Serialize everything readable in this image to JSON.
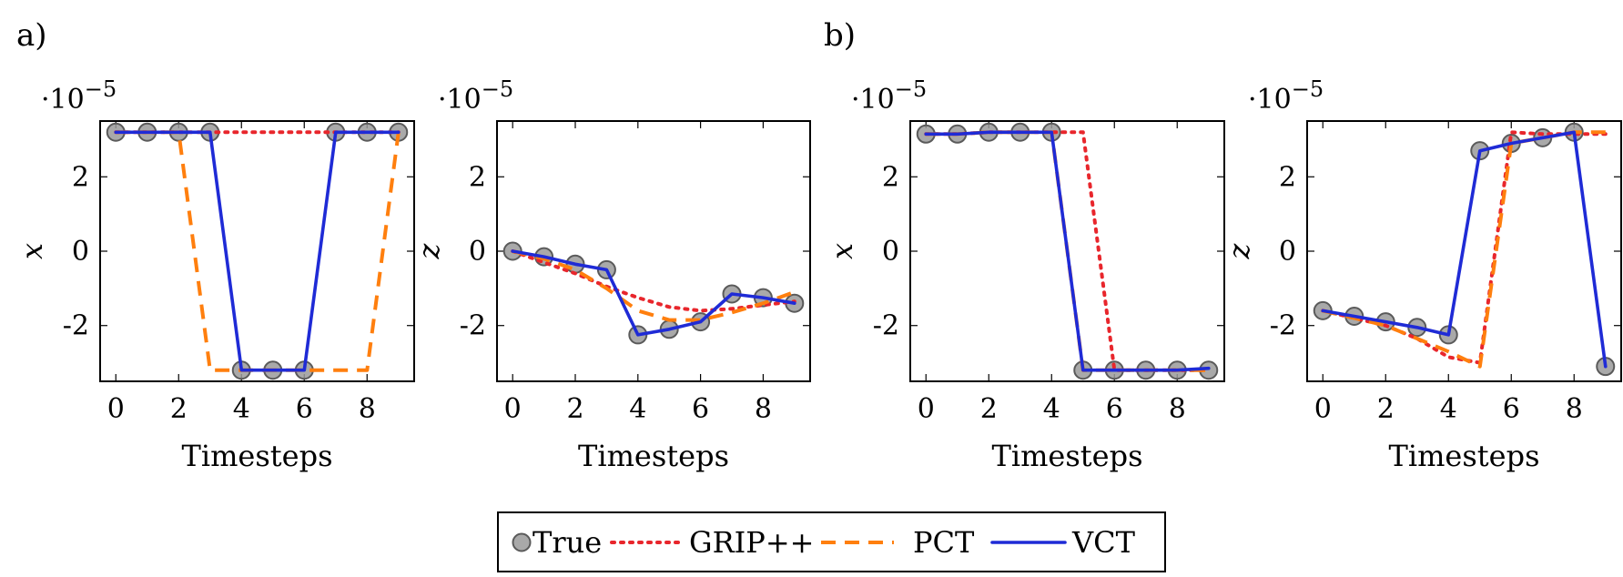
{
  "panels": [
    {
      "label": "a)"
    },
    {
      "label": "b)"
    }
  ],
  "legend": [
    {
      "key": "true",
      "label": "True",
      "color": "#8c8c8c",
      "style": "marker"
    },
    {
      "key": "grip",
      "label": "GRIP++",
      "color": "#e8262c",
      "style": "dotted"
    },
    {
      "key": "pct",
      "label": "PCT",
      "color": "#ff7f0e",
      "style": "dashed"
    },
    {
      "key": "vct",
      "label": "VCT",
      "color": "#1f2bd6",
      "style": "solid"
    }
  ],
  "chart_data": [
    {
      "type": "line",
      "panel": "a)",
      "xlabel": "Timesteps",
      "ylabel": "x",
      "y_multiplier": "·10",
      "y_multiplier_exp": "−5",
      "x": [
        0,
        1,
        2,
        3,
        4,
        5,
        6,
        7,
        8,
        9
      ],
      "xticks": [
        "0",
        "2",
        "4",
        "6",
        "8"
      ],
      "yticks": [
        "2",
        "0",
        "-2"
      ],
      "xlim": [
        -0.5,
        9.5
      ],
      "ylim": [
        -3.5,
        3.5
      ],
      "series": [
        {
          "name": "True",
          "values": [
            3.2,
            3.2,
            3.2,
            3.2,
            -3.2,
            -3.2,
            -3.2,
            3.2,
            3.2,
            3.2
          ]
        },
        {
          "name": "GRIP++",
          "values": [
            3.2,
            3.2,
            3.2,
            3.2,
            3.2,
            3.2,
            3.2,
            3.2,
            3.2,
            3.2
          ]
        },
        {
          "name": "PCT",
          "values": [
            3.2,
            3.2,
            3.2,
            -3.2,
            -3.2,
            -3.2,
            -3.2,
            -3.2,
            -3.2,
            3.2
          ]
        },
        {
          "name": "VCT",
          "values": [
            3.2,
            3.2,
            3.2,
            3.2,
            -3.2,
            -3.2,
            -3.2,
            3.2,
            3.2,
            3.2
          ]
        }
      ]
    },
    {
      "type": "line",
      "panel": "a)",
      "xlabel": "Timesteps",
      "ylabel": "z",
      "y_multiplier": "·10",
      "y_multiplier_exp": "−5",
      "x": [
        0,
        1,
        2,
        3,
        4,
        5,
        6,
        7,
        8,
        9
      ],
      "xticks": [
        "0",
        "2",
        "4",
        "6",
        "8"
      ],
      "yticks": [
        "2",
        "0",
        "-2"
      ],
      "xlim": [
        -0.5,
        9.5
      ],
      "ylim": [
        -3.5,
        3.5
      ],
      "series": [
        {
          "name": "True",
          "values": [
            0,
            -0.15,
            -0.35,
            -0.5,
            -2.25,
            -2.1,
            -1.9,
            -1.15,
            -1.25,
            -1.4
          ]
        },
        {
          "name": "GRIP++",
          "values": [
            0,
            -0.3,
            -0.6,
            -0.95,
            -1.25,
            -1.5,
            -1.6,
            -1.55,
            -1.45,
            -1.35
          ]
        },
        {
          "name": "PCT",
          "values": [
            0,
            -0.2,
            -0.5,
            -1.0,
            -1.6,
            -1.85,
            -1.85,
            -1.65,
            -1.4,
            -1.1
          ]
        },
        {
          "name": "VCT",
          "values": [
            0,
            -0.15,
            -0.35,
            -0.5,
            -2.25,
            -2.1,
            -1.9,
            -1.15,
            -1.25,
            -1.4
          ]
        }
      ]
    },
    {
      "type": "line",
      "panel": "b)",
      "xlabel": "Timesteps",
      "ylabel": "x",
      "y_multiplier": "·10",
      "y_multiplier_exp": "−5",
      "x": [
        0,
        1,
        2,
        3,
        4,
        5,
        6,
        7,
        8,
        9
      ],
      "xticks": [
        "0",
        "2",
        "4",
        "6",
        "8"
      ],
      "yticks": [
        "2",
        "0",
        "-2"
      ],
      "xlim": [
        -0.5,
        9.5
      ],
      "ylim": [
        -3.5,
        3.5
      ],
      "series": [
        {
          "name": "True",
          "values": [
            3.15,
            3.15,
            3.2,
            3.2,
            3.2,
            -3.2,
            -3.2,
            -3.2,
            -3.2,
            -3.2
          ]
        },
        {
          "name": "GRIP++",
          "values": [
            3.15,
            3.15,
            3.2,
            3.2,
            3.2,
            3.2,
            -3.2,
            -3.2,
            -3.2,
            -3.2
          ]
        },
        {
          "name": "PCT",
          "values": [
            3.15,
            3.15,
            3.2,
            3.2,
            3.2,
            -3.2,
            -3.2,
            -3.2,
            -3.2,
            -3.2
          ]
        },
        {
          "name": "VCT",
          "values": [
            3.15,
            3.15,
            3.2,
            3.2,
            3.2,
            -3.2,
            -3.2,
            -3.2,
            -3.2,
            -3.15
          ]
        }
      ]
    },
    {
      "type": "line",
      "panel": "b)",
      "xlabel": "Timesteps",
      "ylabel": "z",
      "y_multiplier": "·10",
      "y_multiplier_exp": "−5",
      "x": [
        0,
        1,
        2,
        3,
        4,
        5,
        6,
        7,
        8,
        9
      ],
      "xticks": [
        "0",
        "2",
        "4",
        "6",
        "8"
      ],
      "yticks": [
        "2",
        "0",
        "-2"
      ],
      "xlim": [
        -0.5,
        9.5
      ],
      "ylim": [
        -3.5,
        3.5
      ],
      "series": [
        {
          "name": "True",
          "values": [
            -1.6,
            -1.75,
            -1.9,
            -2.05,
            -2.25,
            2.7,
            2.9,
            3.05,
            3.2,
            -3.1
          ]
        },
        {
          "name": "GRIP++",
          "values": [
            -1.6,
            -1.8,
            -2.0,
            -2.35,
            -2.85,
            -3.0,
            3.2,
            3.15,
            3.15,
            3.15
          ]
        },
        {
          "name": "PCT",
          "values": [
            -1.6,
            -1.8,
            -2.0,
            -2.35,
            -2.7,
            -3.1,
            2.9,
            3.05,
            3.2,
            3.2
          ]
        },
        {
          "name": "VCT",
          "values": [
            -1.6,
            -1.75,
            -1.9,
            -2.05,
            -2.25,
            2.7,
            2.9,
            3.05,
            3.2,
            -3.1
          ]
        }
      ]
    }
  ]
}
